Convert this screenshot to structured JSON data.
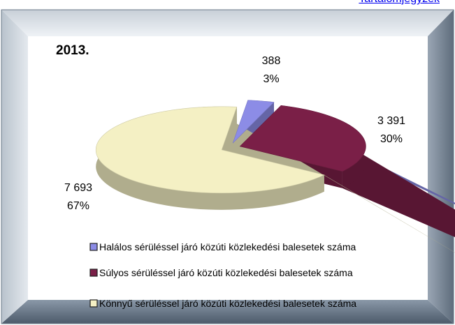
{
  "link": "Tartalomjegyzék",
  "chart_data": {
    "type": "pie3d",
    "title": "2013.",
    "categories": [
      "Halálos sérüléssel járó közúti közlekedési balesetek száma",
      "Súlyos sérüléssel járó közúti közlekedési balesetek száma",
      "Könnyű sérüléssel járó közúti közlekedési balesetek száma"
    ],
    "values": [
      388,
      3391,
      7693
    ],
    "value_labels": [
      "388",
      "3 391",
      "7 693"
    ],
    "share_labels": [
      "3%",
      "30%",
      "67%"
    ],
    "colors": [
      "#8c8ce6",
      "#7a1f47",
      "#f4f0c4"
    ],
    "legend": "bottom"
  }
}
